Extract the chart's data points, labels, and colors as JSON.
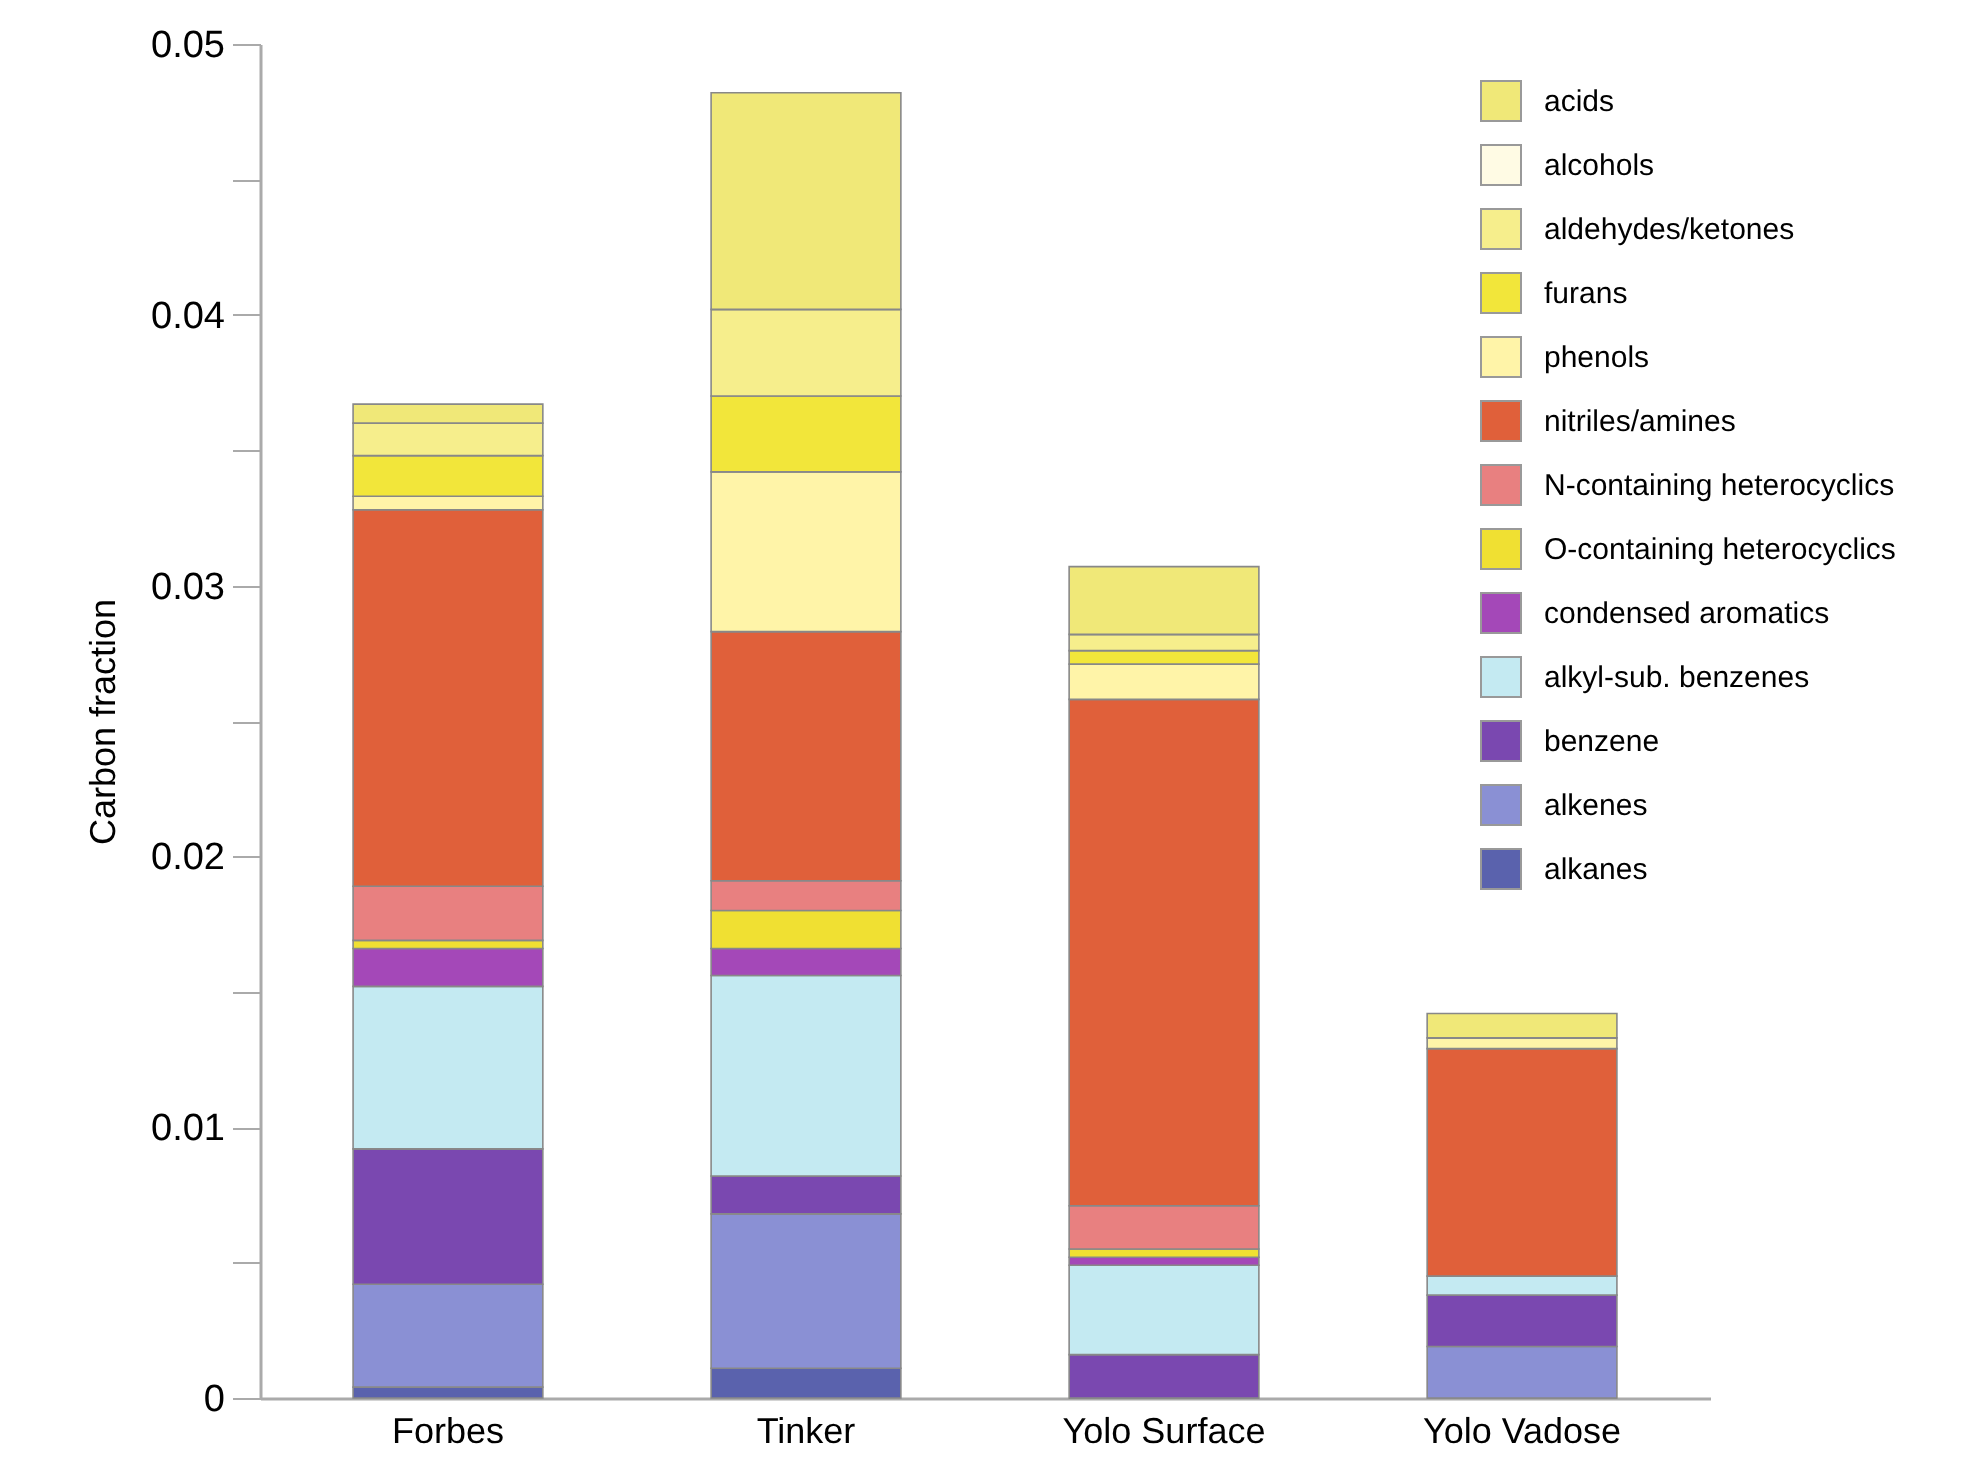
{
  "chart_data": {
    "type": "bar",
    "stacked": true,
    "ylabel": "Carbon fraction",
    "categories": [
      "Forbes",
      "Tinker",
      "Yolo Surface",
      "Yolo Vadose"
    ],
    "ylim": [
      0,
      0.05
    ],
    "yticks": [
      0,
      {
        "value": 0.005,
        "label": null
      },
      0.01,
      {
        "value": 0.015,
        "label": null
      },
      0.02,
      {
        "value": 0.025,
        "label": null
      },
      0.03,
      {
        "value": 0.035,
        "label": null
      },
      0.04,
      {
        "value": 0.045,
        "label": null
      },
      0.05
    ],
    "grid": false,
    "legend": "top right",
    "series": [
      {
        "name": "alkanes",
        "color": "#5a62ad",
        "values": [
          0.0004,
          0.0011,
          0,
          0
        ]
      },
      {
        "name": "alkenes",
        "color": "#8a90d4",
        "values": [
          0.0038,
          0.0057,
          0,
          0.0019
        ]
      },
      {
        "name": "benzene",
        "color": "#7a48b0",
        "values": [
          0.005,
          0.0014,
          0.0016,
          0.0019
        ]
      },
      {
        "name": "alkyl-sub. benzenes",
        "color": "#c4eaf2",
        "values": [
          0.006,
          0.0074,
          0.0033,
          0.0007
        ]
      },
      {
        "name": "condensed aromatics",
        "color": "#a448b8",
        "values": [
          0.0014,
          0.001,
          0.0003,
          0
        ]
      },
      {
        "name": "O-containing heterocyclics",
        "color": "#f0e032",
        "values": [
          0.0003,
          0.0014,
          0.0003,
          0
        ]
      },
      {
        "name": "N-containing heterocyclics",
        "color": "#e88080",
        "values": [
          0.002,
          0.0011,
          0.0016,
          0
        ]
      },
      {
        "name": "nitriles/amines",
        "color": "#e0603a",
        "values": [
          0.0139,
          0.0092,
          0.0187,
          0.0084
        ]
      },
      {
        "name": "phenols",
        "color": "#fff4a8",
        "values": [
          0.0005,
          0.0059,
          0.0013,
          0.0004
        ]
      },
      {
        "name": "furans",
        "color": "#f2e63a",
        "values": [
          0.0015,
          0.0028,
          0.0005,
          0
        ]
      },
      {
        "name": "aldehydes/ketones",
        "color": "#f6ee8c",
        "values": [
          0.0012,
          0.0032,
          0.0006,
          0
        ]
      },
      {
        "name": "alcohols",
        "color": "#fffbe4",
        "values": [
          0,
          0,
          0,
          0
        ]
      },
      {
        "name": "acids",
        "color": "#f0e878",
        "values": [
          0.0007,
          0.008,
          0.0025,
          0.0009
        ]
      }
    ]
  }
}
